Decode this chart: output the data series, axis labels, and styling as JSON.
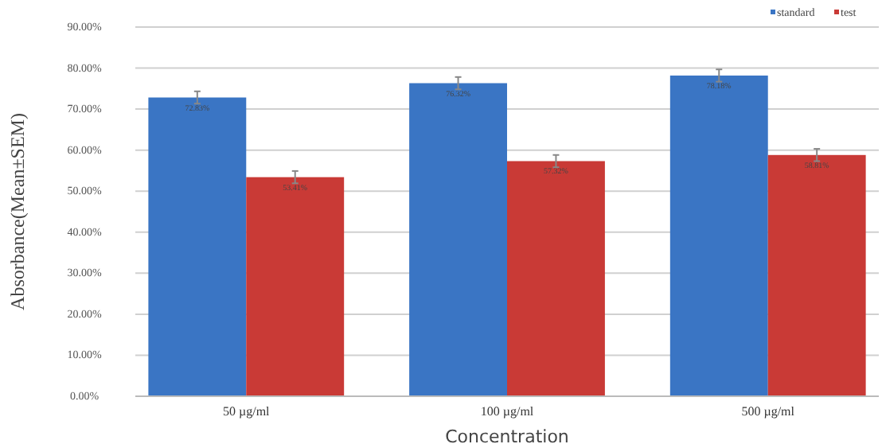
{
  "chart_data": {
    "type": "bar",
    "xlabel": "Concentration",
    "ylabel": "Absorbance(Mean±SEM)",
    "categories": [
      "50 µg/ml",
      "100 µg/ml",
      "500 µg/ml"
    ],
    "series": [
      {
        "name": "standard",
        "color": "#3a75c4",
        "values": [
          72.83,
          76.32,
          78.18
        ],
        "errors": [
          1.5,
          1.5,
          1.5
        ],
        "value_labels": [
          "72.83%",
          "76.32%",
          "78.18%"
        ]
      },
      {
        "name": "test",
        "color": "#c93a36",
        "values": [
          53.41,
          57.32,
          58.81
        ],
        "errors": [
          1.5,
          1.5,
          1.5
        ],
        "value_labels": [
          "53.41%",
          "57.32%",
          "58.81%"
        ]
      }
    ],
    "ylim": [
      0,
      90
    ],
    "yticks": [
      {
        "value": 0,
        "label": "0.00%"
      },
      {
        "value": 10,
        "label": "10.00%"
      },
      {
        "value": 20,
        "label": "20.00%"
      },
      {
        "value": 30,
        "label": "30.00%"
      },
      {
        "value": 40,
        "label": "40.00%"
      },
      {
        "value": 50,
        "label": "50.00%"
      },
      {
        "value": 60,
        "label": "60.00%"
      },
      {
        "value": 70,
        "label": "70.00%"
      },
      {
        "value": 80,
        "label": "80.00%"
      },
      {
        "value": 90,
        "label": "90.00%"
      }
    ],
    "grid": "y",
    "legend": "top right"
  }
}
